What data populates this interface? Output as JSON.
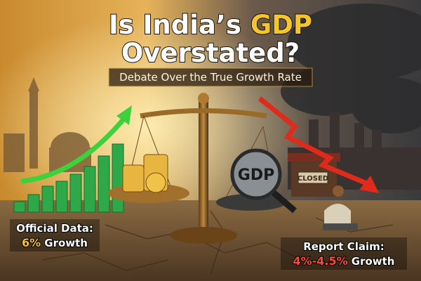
{
  "title": {
    "line1": "Is India’s",
    "highlight": "GDP",
    "line2": "Overstated?"
  },
  "subtitle": "Debate Over the True Growth Rate",
  "left_callout": {
    "label": "Official Data:",
    "figure": "6%",
    "suffix": "Growth"
  },
  "right_callout": {
    "label": "Report Claim:",
    "figure": "4%-4.5%",
    "suffix": "Growth"
  },
  "scale": {
    "right_pan_label": "GDP"
  },
  "shop_sign": "CLOSED"
}
